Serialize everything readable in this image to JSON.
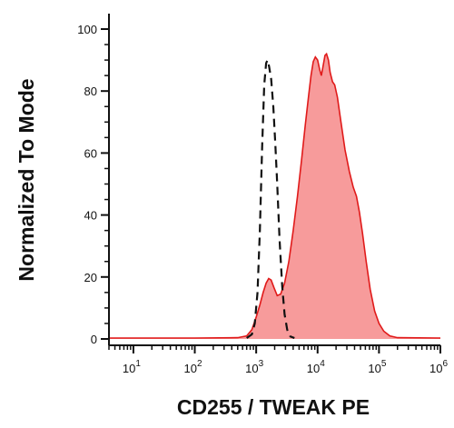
{
  "chart_data": {
    "type": "area",
    "xlabel": "CD255 / TWEAK PE",
    "ylabel": "Normalized To Mode",
    "x_scale": "log",
    "xlim": [
      4,
      1000000
    ],
    "ylim": [
      0,
      100
    ],
    "grid": false,
    "y_ticks": [
      0,
      20,
      40,
      60,
      80,
      100
    ],
    "x_ticks": [
      {
        "value": 10,
        "base": "10",
        "exp": "1"
      },
      {
        "value": 100,
        "base": "10",
        "exp": "2"
      },
      {
        "value": 1000,
        "base": "10",
        "exp": "3"
      },
      {
        "value": 10000,
        "base": "10",
        "exp": "4"
      },
      {
        "value": 100000,
        "base": "10",
        "exp": "5"
      },
      {
        "value": 1000000,
        "base": "10",
        "exp": "6"
      }
    ],
    "series": [
      {
        "style": "filled",
        "fill_color": "#f79b9b",
        "line_color": "#e01a1a",
        "points": [
          [
            4,
            0.3
          ],
          [
            100,
            0.3
          ],
          [
            500,
            0.4
          ],
          [
            700,
            1
          ],
          [
            850,
            3
          ],
          [
            1000,
            7
          ],
          [
            1150,
            11
          ],
          [
            1300,
            15
          ],
          [
            1450,
            18
          ],
          [
            1600,
            19.5
          ],
          [
            1750,
            19
          ],
          [
            1950,
            16.5
          ],
          [
            2200,
            14
          ],
          [
            2500,
            14.5
          ],
          [
            2900,
            18
          ],
          [
            3400,
            25
          ],
          [
            4000,
            35
          ],
          [
            4700,
            46
          ],
          [
            5500,
            58
          ],
          [
            6300,
            69
          ],
          [
            7100,
            78
          ],
          [
            7800,
            85
          ],
          [
            8500,
            89.5
          ],
          [
            9200,
            91
          ],
          [
            10000,
            90
          ],
          [
            10800,
            87
          ],
          [
            11500,
            85
          ],
          [
            12300,
            88
          ],
          [
            13200,
            91.5
          ],
          [
            14000,
            92
          ],
          [
            15000,
            90
          ],
          [
            16000,
            86
          ],
          [
            17500,
            83
          ],
          [
            19000,
            82
          ],
          [
            21000,
            78
          ],
          [
            24000,
            70
          ],
          [
            28000,
            61
          ],
          [
            33000,
            54
          ],
          [
            38000,
            49
          ],
          [
            43000,
            46
          ],
          [
            48000,
            41
          ],
          [
            54000,
            34
          ],
          [
            62000,
            25
          ],
          [
            72000,
            16
          ],
          [
            85000,
            9
          ],
          [
            100000,
            5
          ],
          [
            120000,
            2.5
          ],
          [
            150000,
            1
          ],
          [
            200000,
            0.4
          ],
          [
            1000000,
            0.3
          ]
        ]
      },
      {
        "style": "dashed",
        "line_color": "#111111",
        "points": [
          [
            700,
            0.3
          ],
          [
            850,
            1.5
          ],
          [
            950,
            5
          ],
          [
            1050,
            15
          ],
          [
            1150,
            35
          ],
          [
            1250,
            62
          ],
          [
            1350,
            82
          ],
          [
            1450,
            89
          ],
          [
            1530,
            90
          ],
          [
            1620,
            88
          ],
          [
            1750,
            84
          ],
          [
            1900,
            75
          ],
          [
            2050,
            63
          ],
          [
            2200,
            50
          ],
          [
            2400,
            32
          ],
          [
            2650,
            17
          ],
          [
            2900,
            8
          ],
          [
            3200,
            3
          ],
          [
            3600,
            0.8
          ],
          [
            4200,
            0.3
          ]
        ]
      }
    ]
  }
}
